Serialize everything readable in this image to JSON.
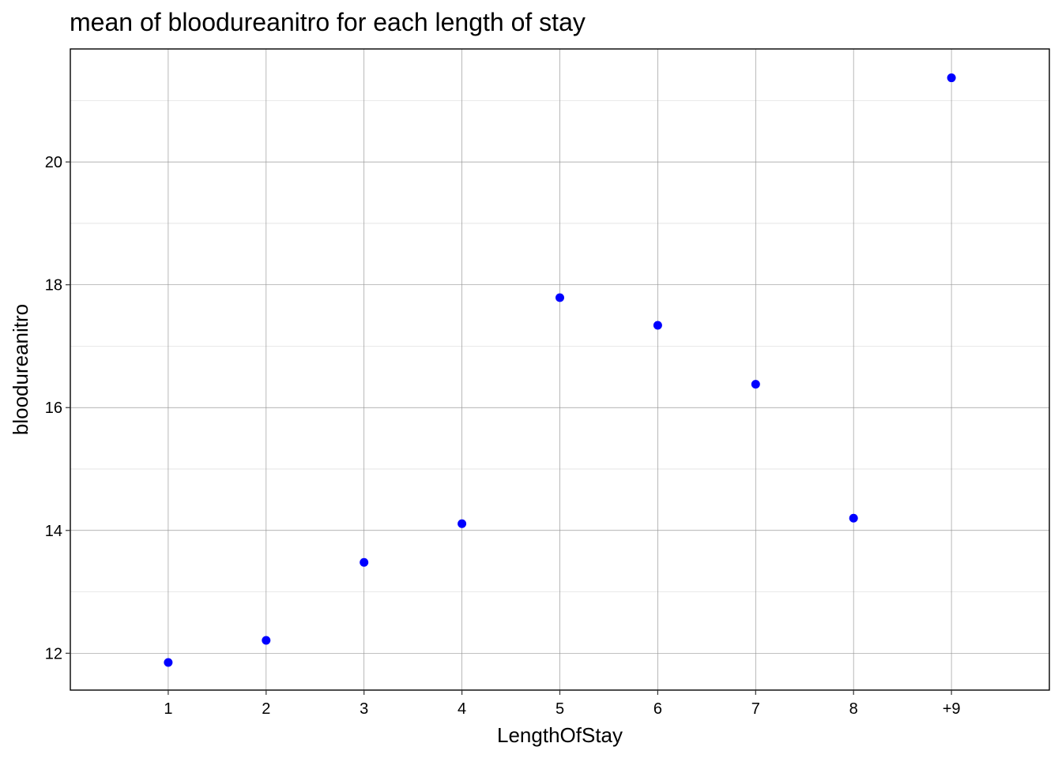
{
  "chart_data": {
    "type": "scatter",
    "title": "mean of bloodureanitro for each length of stay",
    "xlabel": "LengthOfStay",
    "ylabel": "bloodureanitro",
    "categories": [
      "1",
      "2",
      "3",
      "4",
      "5",
      "6",
      "7",
      "8",
      "+9"
    ],
    "series": [
      {
        "values": [
          11.85,
          12.21,
          13.48,
          14.11,
          17.79,
          17.34,
          16.38,
          14.2,
          21.37
        ]
      }
    ],
    "ylim": [
      11.4,
      21.84
    ],
    "yticks": [
      12,
      14,
      16,
      18,
      20
    ],
    "grid": true,
    "point_color": "#0000ff"
  }
}
